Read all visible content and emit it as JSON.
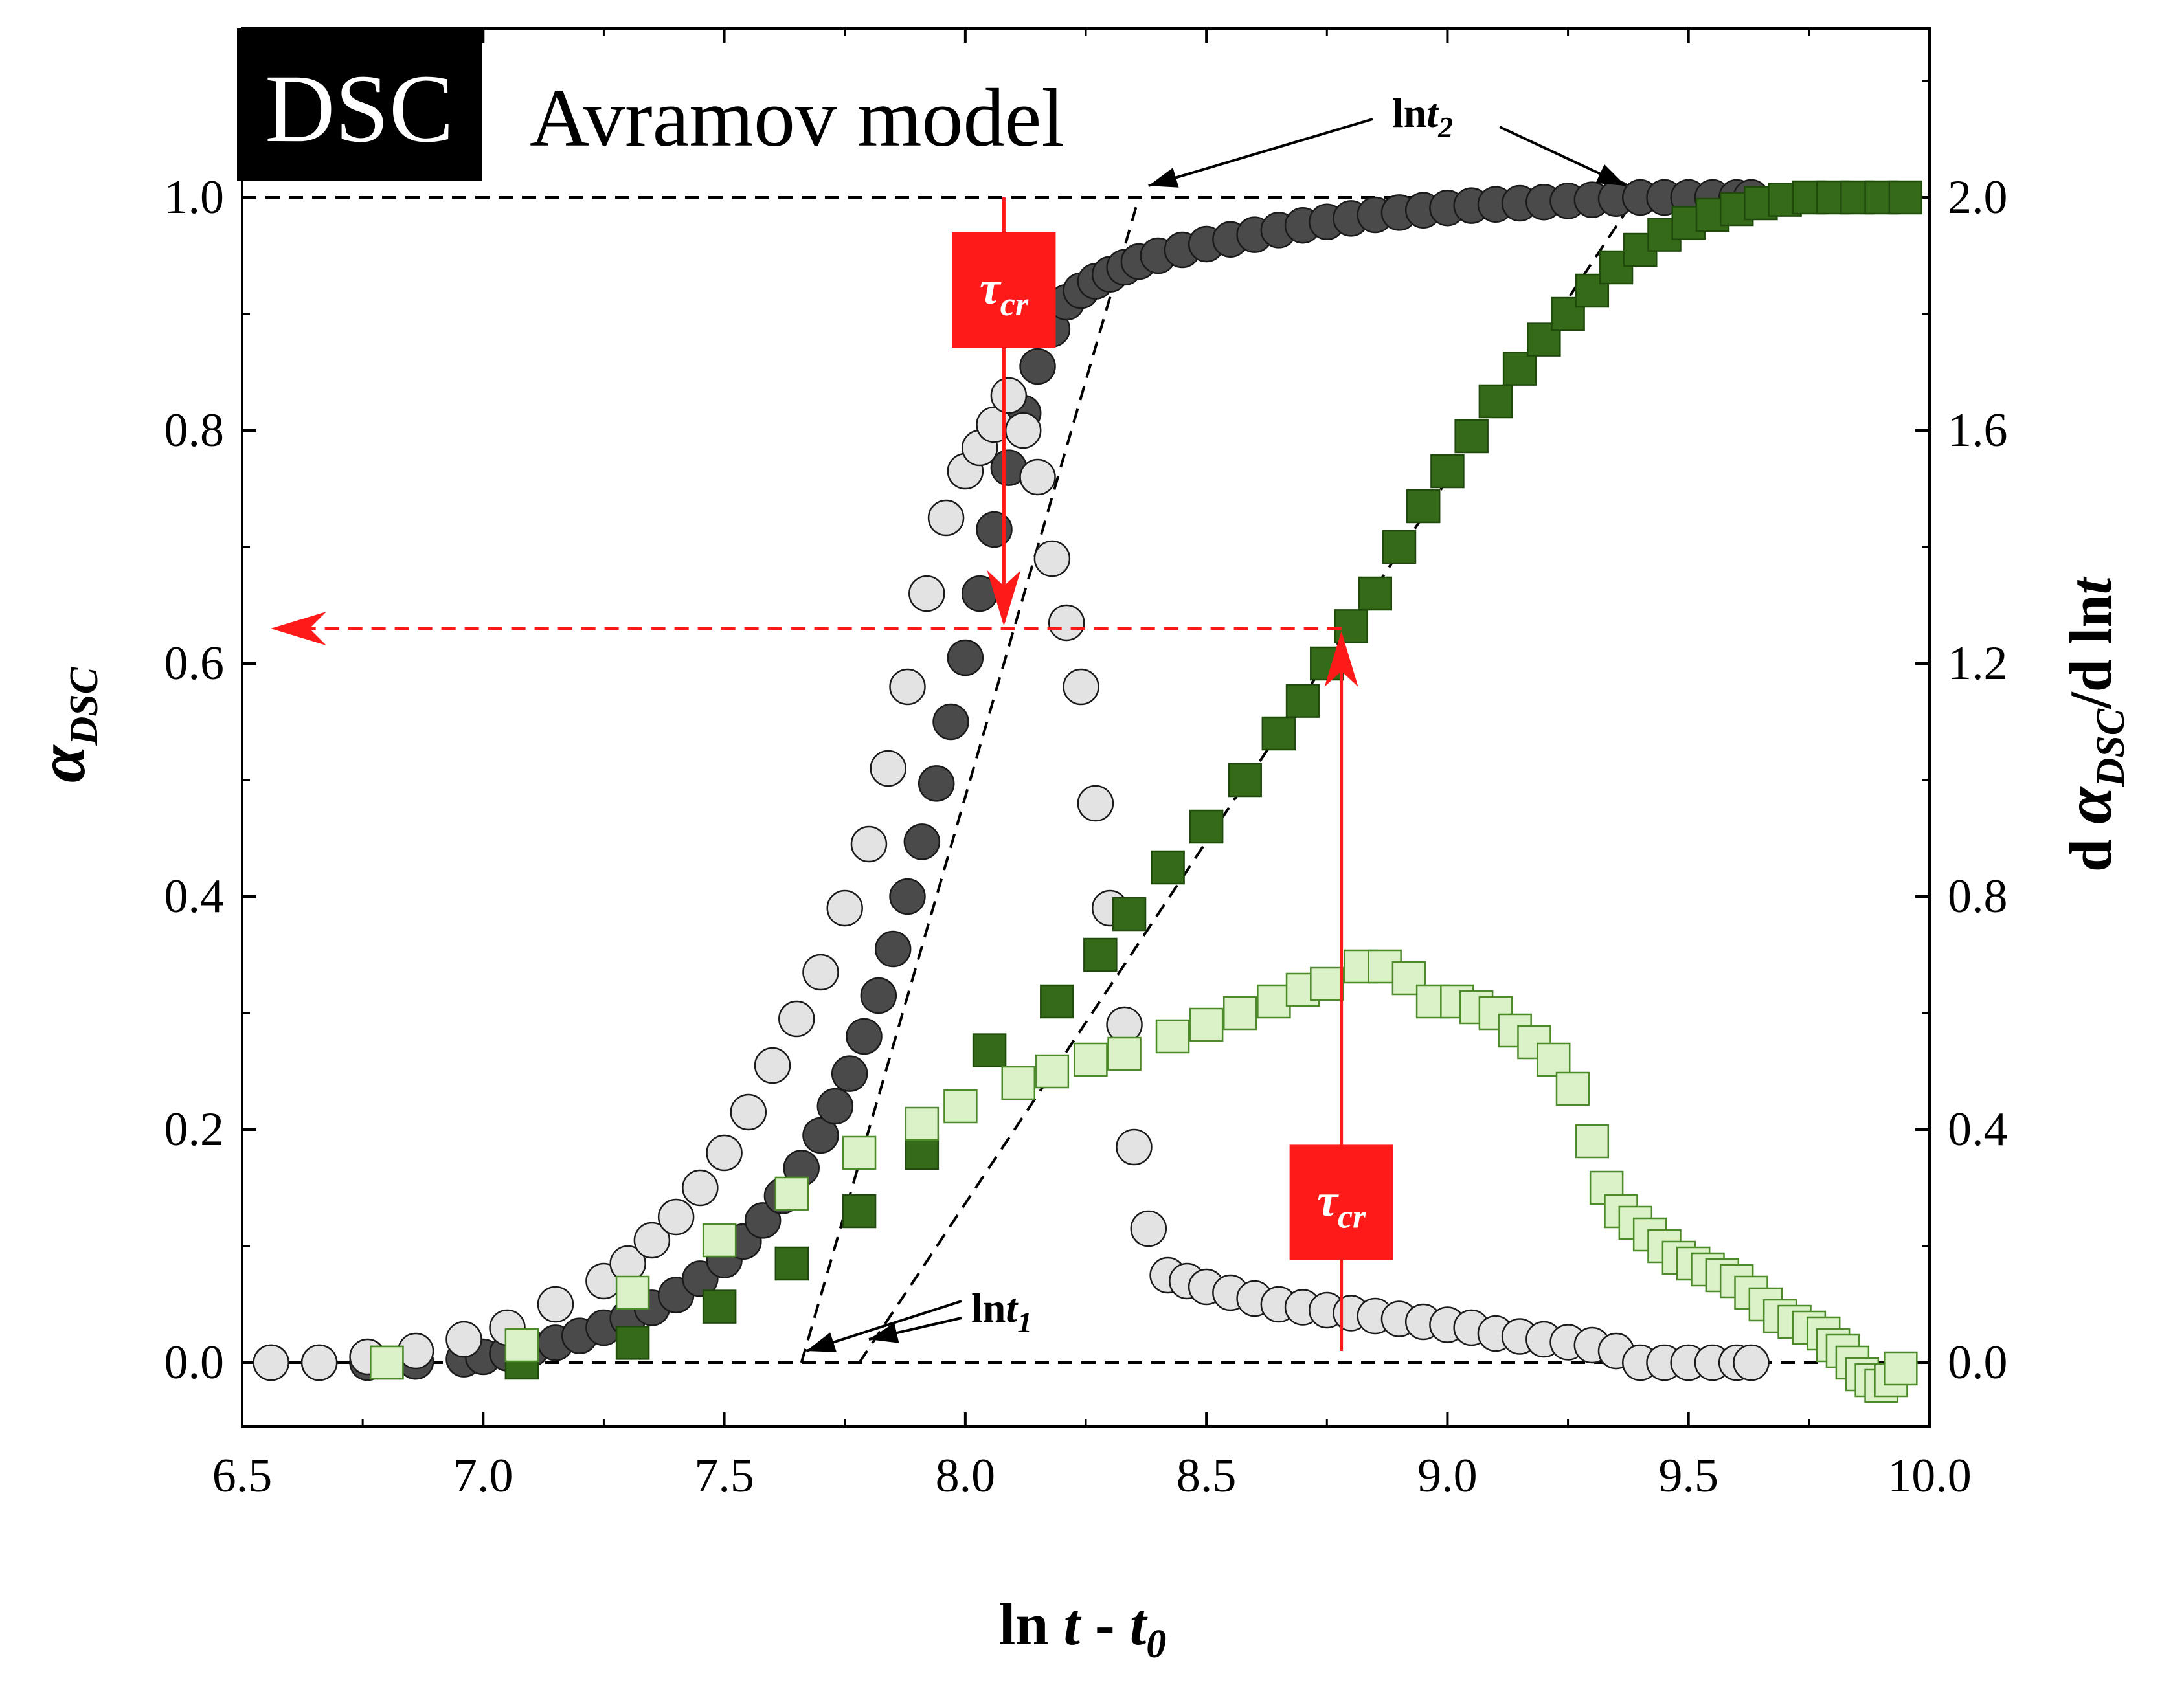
{
  "chart_data": {
    "type": "scatter",
    "badge": "DSC",
    "title": "Avramov model",
    "xlabel": {
      "main": "ln",
      "italic1": "t",
      "sep": " - ",
      "italic2": "t",
      "sub": "0"
    },
    "ylabel_left": {
      "symbol": "α",
      "sub": "DSC"
    },
    "ylabel_right": {
      "prefix": "d ",
      "symbol": "α",
      "sub": "DSC",
      "suffix": "/d ln",
      "italic": "t"
    },
    "xlim": [
      6.5,
      10.0
    ],
    "ylim_left": [
      -0.055,
      1.145
    ],
    "ylim_right": [
      -0.11,
      2.29
    ],
    "x_ticks": [
      "6.5",
      "7.0",
      "7.5",
      "8.0",
      "8.5",
      "9.0",
      "9.5",
      "10.0"
    ],
    "y_ticks_left": [
      "0.0",
      "0.2",
      "0.4",
      "0.6",
      "0.8",
      "1.0"
    ],
    "y_ticks_right": [
      "0.0",
      "0.4",
      "0.8",
      "1.2",
      "1.6",
      "2.0"
    ],
    "annotations": {
      "lnt1": {
        "main": "ln",
        "italic": "t",
        "sub": "1"
      },
      "lnt2": {
        "main": "ln",
        "italic": "t",
        "sub": "2"
      },
      "tau": {
        "symbol": "τ",
        "sub": "cr"
      },
      "alpha_cross": 0.63,
      "tau_x": [
        8.08,
        8.78
      ]
    },
    "series": [
      {
        "name": "alpha_DSC (dark circles)",
        "axis": "left",
        "marker": "circle",
        "color": "#4a4a4a",
        "x": [
          6.56,
          6.66,
          6.76,
          6.86,
          6.96,
          7.0,
          7.05,
          7.1,
          7.15,
          7.2,
          7.25,
          7.3,
          7.35,
          7.4,
          7.45,
          7.5,
          7.54,
          7.58,
          7.62,
          7.66,
          7.7,
          7.73,
          7.76,
          7.79,
          7.82,
          7.85,
          7.88,
          7.91,
          7.94,
          7.97,
          8.0,
          8.03,
          8.06,
          8.09,
          8.12,
          8.15,
          8.18,
          8.21,
          8.24,
          8.27,
          8.3,
          8.33,
          8.36,
          8.4,
          8.45,
          8.5,
          8.55,
          8.6,
          8.65,
          8.7,
          8.75,
          8.8,
          8.85,
          8.9,
          8.95,
          9.0,
          9.05,
          9.1,
          9.15,
          9.2,
          9.25,
          9.3,
          9.35,
          9.4,
          9.45,
          9.5,
          9.55,
          9.6,
          9.63
        ],
        "y": [
          0.0,
          0.0,
          0.0,
          0.001,
          0.003,
          0.005,
          0.008,
          0.012,
          0.017,
          0.023,
          0.03,
          0.038,
          0.047,
          0.058,
          0.072,
          0.088,
          0.104,
          0.122,
          0.143,
          0.167,
          0.195,
          0.22,
          0.248,
          0.28,
          0.315,
          0.355,
          0.4,
          0.447,
          0.497,
          0.55,
          0.605,
          0.66,
          0.715,
          0.768,
          0.815,
          0.855,
          0.887,
          0.91,
          0.92,
          0.928,
          0.934,
          0.94,
          0.945,
          0.95,
          0.955,
          0.96,
          0.964,
          0.968,
          0.972,
          0.976,
          0.979,
          0.982,
          0.985,
          0.987,
          0.989,
          0.991,
          0.993,
          0.994,
          0.995,
          0.996,
          0.997,
          0.998,
          0.999,
          1.0,
          1.0,
          1.0,
          1.0,
          1.0,
          1.0
        ]
      },
      {
        "name": "d alpha_DSC / d ln t (light circles)",
        "axis": "right",
        "marker": "circle",
        "color": "#e3e3e3",
        "x": [
          6.56,
          6.66,
          6.76,
          6.86,
          6.96,
          7.05,
          7.15,
          7.25,
          7.3,
          7.35,
          7.4,
          7.45,
          7.5,
          7.55,
          7.6,
          7.65,
          7.7,
          7.75,
          7.8,
          7.84,
          7.88,
          7.92,
          7.96,
          8.0,
          8.03,
          8.06,
          8.09,
          8.12,
          8.15,
          8.18,
          8.21,
          8.24,
          8.27,
          8.3,
          8.33,
          8.35,
          8.38,
          8.42,
          8.46,
          8.5,
          8.55,
          8.6,
          8.65,
          8.7,
          8.75,
          8.8,
          8.85,
          8.9,
          8.95,
          9.0,
          9.05,
          9.1,
          9.15,
          9.2,
          9.25,
          9.3,
          9.35,
          9.4,
          9.45,
          9.5,
          9.55,
          9.6,
          9.63
        ],
        "y": [
          0.0,
          0.0,
          0.01,
          0.02,
          0.04,
          0.06,
          0.1,
          0.14,
          0.17,
          0.21,
          0.25,
          0.3,
          0.36,
          0.43,
          0.51,
          0.59,
          0.67,
          0.78,
          0.89,
          1.02,
          1.16,
          1.32,
          1.45,
          1.53,
          1.57,
          1.61,
          1.66,
          1.6,
          1.52,
          1.38,
          1.27,
          1.16,
          0.96,
          0.78,
          0.58,
          0.37,
          0.23,
          0.15,
          0.14,
          0.13,
          0.12,
          0.11,
          0.1,
          0.095,
          0.09,
          0.085,
          0.08,
          0.075,
          0.07,
          0.065,
          0.06,
          0.05,
          0.045,
          0.04,
          0.035,
          0.03,
          0.02,
          0.0,
          0.0,
          0.0,
          0.0,
          0.0,
          0.0
        ]
      },
      {
        "name": "alpha_DSC (dark green squares)",
        "axis": "left",
        "marker": "square",
        "color": "#356b18",
        "x": [
          6.8,
          7.08,
          7.31,
          7.49,
          7.64,
          7.78,
          7.91,
          8.05,
          8.19,
          8.28,
          8.34,
          8.42,
          8.5,
          8.58,
          8.65,
          8.7,
          8.75,
          8.8,
          8.85,
          8.9,
          8.95,
          9.0,
          9.05,
          9.1,
          9.15,
          9.2,
          9.25,
          9.3,
          9.35,
          9.4,
          9.45,
          9.5,
          9.55,
          9.6,
          9.65,
          9.7,
          9.75,
          9.8,
          9.85,
          9.9,
          9.95
        ],
        "y": [
          0.0,
          0.0,
          0.017,
          0.048,
          0.085,
          0.13,
          0.18,
          0.268,
          0.31,
          0.35,
          0.385,
          0.425,
          0.46,
          0.5,
          0.54,
          0.568,
          0.6,
          0.632,
          0.66,
          0.7,
          0.735,
          0.765,
          0.795,
          0.825,
          0.853,
          0.878,
          0.9,
          0.92,
          0.94,
          0.955,
          0.968,
          0.978,
          0.985,
          0.99,
          0.995,
          0.998,
          1.0,
          1.0,
          1.0,
          1.0,
          1.0
        ]
      },
      {
        "name": "d alpha_DSC / d ln t (light green squares)",
        "axis": "right",
        "marker": "square",
        "color": "#dbf2c8",
        "x": [
          6.8,
          7.08,
          7.31,
          7.49,
          7.64,
          7.78,
          7.91,
          7.99,
          8.11,
          8.18,
          8.26,
          8.33,
          8.43,
          8.5,
          8.57,
          8.64,
          8.7,
          8.75,
          8.82,
          8.87,
          8.92,
          8.97,
          9.02,
          9.06,
          9.1,
          9.14,
          9.18,
          9.22,
          9.26,
          9.3,
          9.33,
          9.36,
          9.39,
          9.42,
          9.45,
          9.48,
          9.51,
          9.54,
          9.57,
          9.6,
          9.63,
          9.66,
          9.69,
          9.72,
          9.75,
          9.78,
          9.8,
          9.82,
          9.84,
          9.86,
          9.88,
          9.9,
          9.92,
          9.94
        ],
        "y": [
          0.0,
          0.03,
          0.12,
          0.21,
          0.29,
          0.36,
          0.41,
          0.44,
          0.48,
          0.5,
          0.52,
          0.53,
          0.56,
          0.58,
          0.6,
          0.62,
          0.64,
          0.65,
          0.68,
          0.68,
          0.66,
          0.62,
          0.62,
          0.61,
          0.6,
          0.57,
          0.55,
          0.52,
          0.47,
          0.38,
          0.3,
          0.26,
          0.24,
          0.22,
          0.2,
          0.18,
          0.17,
          0.16,
          0.15,
          0.14,
          0.12,
          0.1,
          0.08,
          0.07,
          0.06,
          0.05,
          0.03,
          0.02,
          0.0,
          -0.02,
          -0.03,
          -0.04,
          -0.03,
          -0.01
        ]
      }
    ]
  }
}
